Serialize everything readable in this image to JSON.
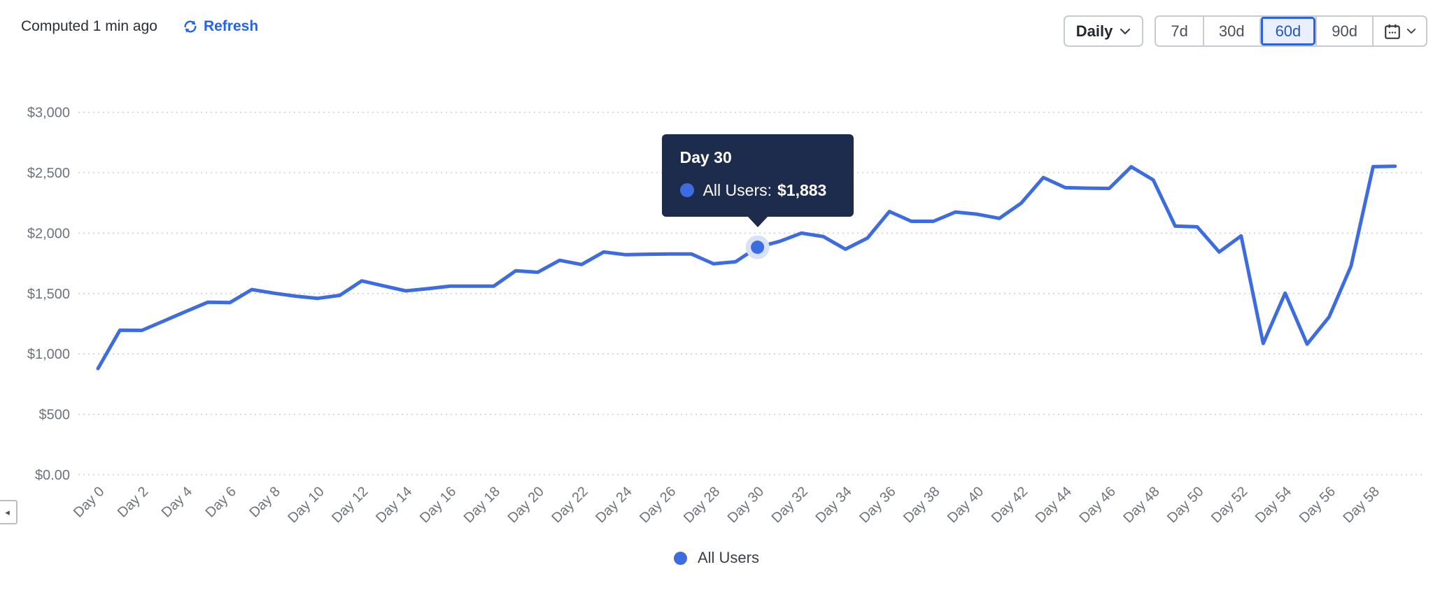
{
  "header": {
    "computed_text": "Computed 1 min ago",
    "refresh_label": "Refresh"
  },
  "controls": {
    "granularity_label": "Daily",
    "ranges": [
      {
        "label": "7d",
        "selected": false
      },
      {
        "label": "30d",
        "selected": false
      },
      {
        "label": "60d",
        "selected": true
      },
      {
        "label": "90d",
        "selected": false
      }
    ],
    "calendar_icon": "calendar-icon"
  },
  "colors": {
    "series_blue": "#3d6ce1",
    "accent_link": "#2563eb",
    "selected_range_text": "#2054c8",
    "selected_range_bg": "#e9effc",
    "selected_range_border": "#2f63d8",
    "tooltip_bg": "#1d2b4c",
    "gridline": "#c9d0dd",
    "axis_text": "#6e737b"
  },
  "chart_data": {
    "type": "line",
    "title": "",
    "xlabel": "",
    "ylabel": "",
    "x": [
      0,
      1,
      2,
      3,
      4,
      5,
      6,
      7,
      8,
      9,
      10,
      11,
      12,
      13,
      14,
      15,
      16,
      17,
      18,
      19,
      20,
      21,
      22,
      23,
      24,
      25,
      26,
      27,
      28,
      29,
      30,
      31,
      32,
      33,
      34,
      35,
      36,
      37,
      38,
      39,
      40,
      41,
      42,
      43,
      44,
      45,
      46,
      47,
      48,
      49,
      50,
      51,
      52,
      53,
      54,
      55,
      56,
      57,
      58,
      59
    ],
    "series": [
      {
        "name": "All Users",
        "color": "#3d6ce1",
        "values": [
          879,
          1197,
          1195,
          1273,
          1352,
          1428,
          1425,
          1533,
          1503,
          1478,
          1460,
          1485,
          1605,
          1563,
          1522,
          1540,
          1561,
          1561,
          1561,
          1688,
          1676,
          1775,
          1740,
          1844,
          1821,
          1825,
          1827,
          1827,
          1746,
          1763,
          1883,
          1931,
          2000,
          1971,
          1867,
          1959,
          2179,
          2098,
          2098,
          2174,
          2156,
          2122,
          2249,
          2460,
          2376,
          2372,
          2370,
          2549,
          2440,
          2058,
          2052,
          1844,
          1977,
          1087,
          1503,
          1081,
          1306,
          1728,
          2550,
          2553
        ]
      }
    ],
    "x_tick_labels": [
      "Day 0",
      "Day 2",
      "Day 4",
      "Day 6",
      "Day 8",
      "Day 10",
      "Day 12",
      "Day 14",
      "Day 16",
      "Day 18",
      "Day 20",
      "Day 22",
      "Day 24",
      "Day 26",
      "Day 28",
      "Day 30",
      "Day 32",
      "Day 34",
      "Day 36",
      "Day 38",
      "Day 40",
      "Day 42",
      "Day 44",
      "Day 46",
      "Day 48",
      "Day 50",
      "Day 52",
      "Day 54",
      "Day 56",
      "Day 58"
    ],
    "x_tick_step": 2,
    "y_ticks": [
      {
        "label": "$3,000",
        "value": 3000
      },
      {
        "label": "$2,500",
        "value": 2500
      },
      {
        "label": "$2,000",
        "value": 2000
      },
      {
        "label": "$1,500",
        "value": 1500
      },
      {
        "label": "$1,000",
        "value": 1000
      },
      {
        "label": "$500",
        "value": 500
      },
      {
        "label": "$0.00",
        "value": 0
      }
    ],
    "ylim": [
      0,
      3000
    ],
    "xlim": [
      0,
      59
    ],
    "grid": "horizontal-dotted",
    "legend_position": "bottom"
  },
  "tooltip": {
    "title": "Day 30",
    "series_label": "All Users:",
    "value": "$1,883",
    "day_index": 30
  },
  "legend": {
    "items": [
      {
        "label": "All Users",
        "color": "#3d6ce1"
      }
    ]
  },
  "nav": {
    "left_arrow": "◂"
  }
}
